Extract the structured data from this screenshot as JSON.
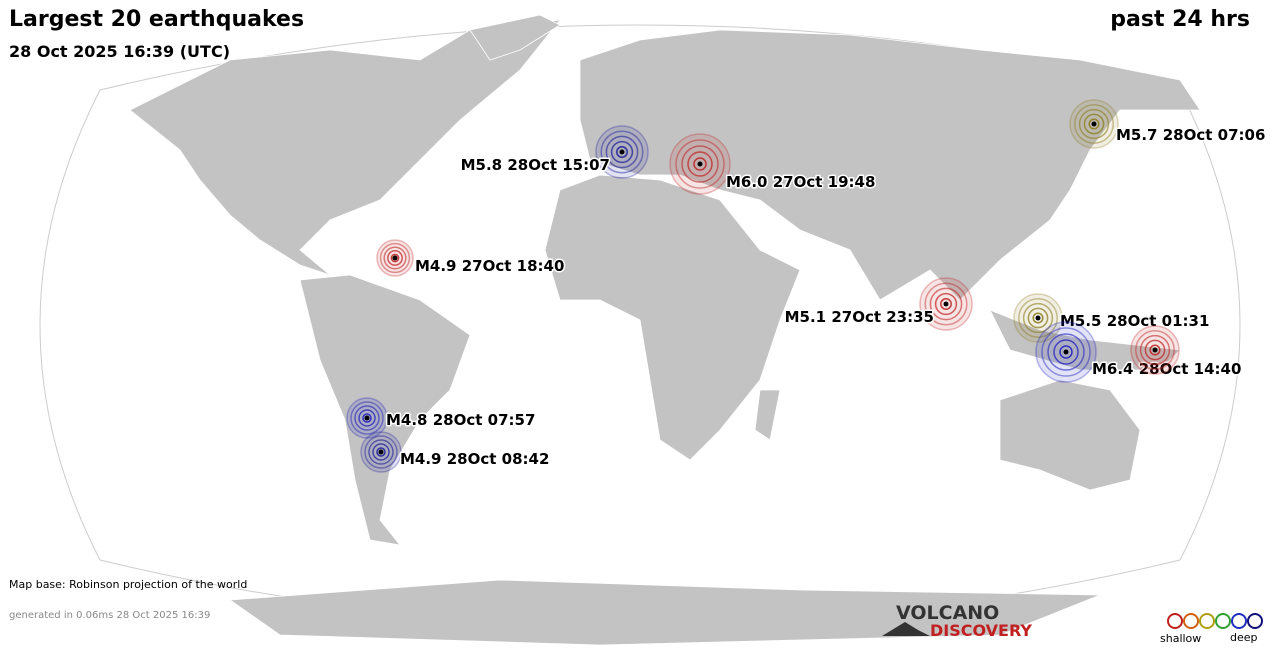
{
  "header": {
    "title": "Largest 20 earthquakes",
    "period": "past 24 hrs",
    "timestamp": "28 Oct 2025 16:39 (UTC)"
  },
  "quakes": [
    {
      "label": "M5.8 28Oct 15:07",
      "color": "#1a1a9a"
    },
    {
      "label": "M6.0 27Oct 19:48",
      "color": "#c02020"
    },
    {
      "label": "M5.7 28Oct 07:06",
      "color": "#8a7a1a"
    },
    {
      "label": "M4.9 27Oct 18:40",
      "color": "#c02020"
    },
    {
      "label": "M5.1 27Oct 23:35",
      "color": "#c02020"
    },
    {
      "label": "M5.5 28Oct 01:31",
      "color": "#8a7a1a"
    },
    {
      "label": "M6.4 28Oct 14:40",
      "color": "#1a1ac0"
    },
    {
      "label": null,
      "color": "#c02020"
    },
    {
      "label": "M4.8 28Oct 07:57",
      "color": "#1a1ac0"
    },
    {
      "label": "M4.9 28Oct 08:42",
      "color": "#1a1a9a"
    }
  ],
  "footer": {
    "map_base": "Map base: Robinson projection of the world",
    "generated": "generated in 0.06ms 28 Oct 2025 16:39"
  },
  "logo": {
    "line1": "VOLCANO",
    "line2": "DISCOVERY"
  },
  "legend": {
    "shallow": "shallow",
    "deep": "deep"
  }
}
